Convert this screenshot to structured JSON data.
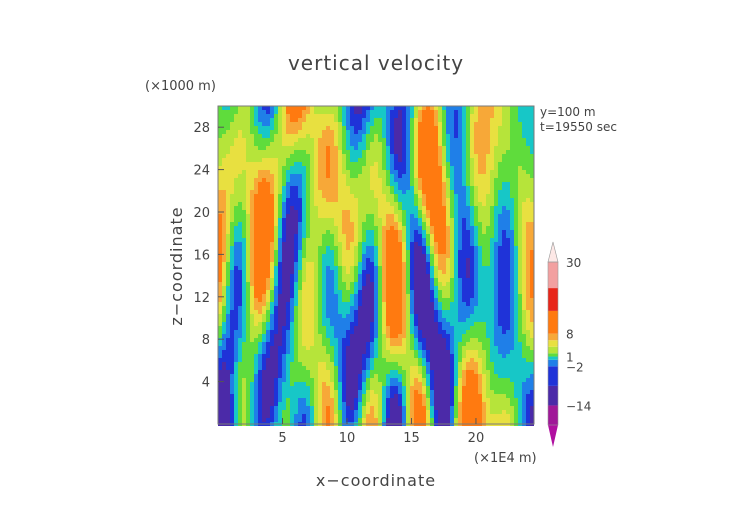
{
  "chart_data": {
    "type": "heatmap",
    "title": "vertical velocity",
    "xlabel": "x−coordinate",
    "ylabel": "z−coordinate",
    "x_unit": "(×1E4 m)",
    "y_unit": "(×1000 m)",
    "annotations": [
      "y=100 m",
      "t=19550 sec"
    ],
    "x_ticks": [
      5,
      10,
      15,
      20
    ],
    "y_ticks": [
      4,
      8,
      12,
      16,
      20,
      24,
      28
    ],
    "xlim": [
      0,
      24.5
    ],
    "ylim": [
      0,
      30
    ],
    "grid": false,
    "colorbar": {
      "labels": [
        "30",
        "8",
        "1",
        "−2",
        "−14"
      ],
      "label_values": [
        30,
        8,
        1,
        -2,
        -14
      ],
      "levels": [
        -20,
        -14,
        -8,
        -2,
        0,
        1,
        2,
        4,
        6,
        8,
        15,
        22,
        30
      ],
      "colors": [
        "#a01898",
        "#4b2aa8",
        "#1f33d8",
        "#1f7fe8",
        "#17c7c7",
        "#5fdc3c",
        "#b6e43a",
        "#e8e040",
        "#f7a838",
        "#ff7a10",
        "#e8261a",
        "#f2a0a0",
        "#fbe0dc"
      ],
      "under_color": "#b010a0",
      "over_color": "#fde8e6"
    }
  }
}
